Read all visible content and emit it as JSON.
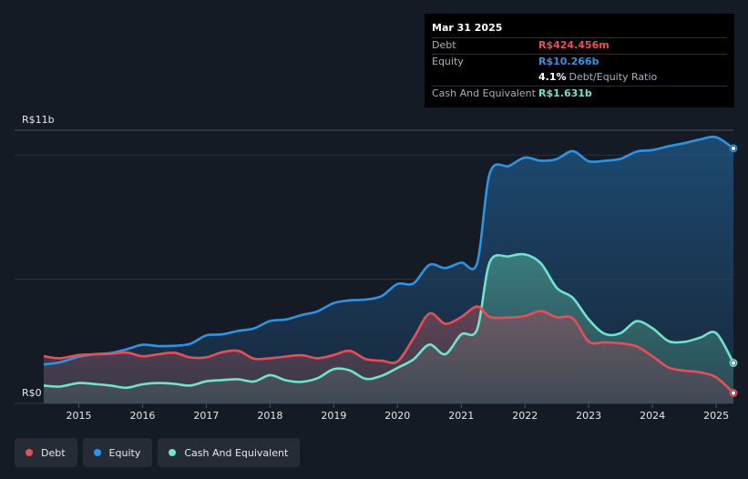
{
  "tooltip": {
    "date": "Mar 31 2025",
    "debt_label": "Debt",
    "debt_value": "R$424.456m",
    "equity_label": "Equity",
    "equity_value": "R$10.266b",
    "ratio_value": "4.1%",
    "ratio_label": "Debt/Equity Ratio",
    "cash_label": "Cash And Equivalent",
    "cash_value": "R$1.631b"
  },
  "legend": {
    "debt": "Debt",
    "equity": "Equity",
    "cash": "Cash And Equivalent"
  },
  "colors": {
    "debt": "#e64f58",
    "equity": "#2e93e5",
    "cash": "#6fe3cd",
    "background": "#151b24"
  },
  "chart_data": {
    "type": "area",
    "title": "",
    "xlabel": "",
    "ylabel": "",
    "unit": "R$ billions",
    "y_top_label": "R$11b",
    "y_bottom_label": "R$0",
    "ylim": [
      0,
      11
    ],
    "xlim": [
      2014.45,
      2025.27
    ],
    "x_ticks": [
      "2015",
      "2016",
      "2017",
      "2018",
      "2019",
      "2020",
      "2021",
      "2022",
      "2023",
      "2024",
      "2025"
    ],
    "series": [
      {
        "name": "Equity",
        "key": "equity",
        "points": [
          [
            2014.45,
            1.57
          ],
          [
            2014.7,
            1.65
          ],
          [
            2015.0,
            1.88
          ],
          [
            2015.25,
            1.98
          ],
          [
            2015.5,
            2.03
          ],
          [
            2015.75,
            2.18
          ],
          [
            2016.0,
            2.36
          ],
          [
            2016.25,
            2.31
          ],
          [
            2016.5,
            2.32
          ],
          [
            2016.75,
            2.4
          ],
          [
            2017.0,
            2.74
          ],
          [
            2017.25,
            2.78
          ],
          [
            2017.5,
            2.92
          ],
          [
            2017.75,
            3.02
          ],
          [
            2018.0,
            3.32
          ],
          [
            2018.25,
            3.38
          ],
          [
            2018.5,
            3.56
          ],
          [
            2018.75,
            3.71
          ],
          [
            2019.0,
            4.04
          ],
          [
            2019.25,
            4.15
          ],
          [
            2019.5,
            4.18
          ],
          [
            2019.75,
            4.32
          ],
          [
            2020.0,
            4.81
          ],
          [
            2020.25,
            4.83
          ],
          [
            2020.5,
            5.58
          ],
          [
            2020.75,
            5.45
          ],
          [
            2021.0,
            5.67
          ],
          [
            2021.25,
            5.65
          ],
          [
            2021.45,
            9.28
          ],
          [
            2021.75,
            9.56
          ],
          [
            2022.0,
            9.9
          ],
          [
            2022.25,
            9.77
          ],
          [
            2022.5,
            9.84
          ],
          [
            2022.75,
            10.16
          ],
          [
            2023.0,
            9.75
          ],
          [
            2023.25,
            9.77
          ],
          [
            2023.5,
            9.85
          ],
          [
            2023.75,
            10.14
          ],
          [
            2024.0,
            10.2
          ],
          [
            2024.25,
            10.35
          ],
          [
            2024.5,
            10.48
          ],
          [
            2024.75,
            10.63
          ],
          [
            2025.0,
            10.72
          ],
          [
            2025.27,
            10.27
          ]
        ]
      },
      {
        "name": "Cash And Equivalent",
        "key": "cash",
        "points": [
          [
            2014.45,
            0.72
          ],
          [
            2014.7,
            0.68
          ],
          [
            2015.0,
            0.82
          ],
          [
            2015.25,
            0.78
          ],
          [
            2015.5,
            0.72
          ],
          [
            2015.75,
            0.63
          ],
          [
            2016.0,
            0.77
          ],
          [
            2016.25,
            0.82
          ],
          [
            2016.5,
            0.79
          ],
          [
            2016.75,
            0.72
          ],
          [
            2017.0,
            0.89
          ],
          [
            2017.25,
            0.94
          ],
          [
            2017.5,
            0.97
          ],
          [
            2017.75,
            0.88
          ],
          [
            2018.0,
            1.14
          ],
          [
            2018.25,
            0.93
          ],
          [
            2018.5,
            0.87
          ],
          [
            2018.75,
            1.02
          ],
          [
            2019.0,
            1.38
          ],
          [
            2019.25,
            1.33
          ],
          [
            2019.5,
            0.99
          ],
          [
            2019.75,
            1.11
          ],
          [
            2020.0,
            1.43
          ],
          [
            2020.25,
            1.77
          ],
          [
            2020.5,
            2.37
          ],
          [
            2020.75,
            1.98
          ],
          [
            2021.0,
            2.78
          ],
          [
            2021.25,
            2.98
          ],
          [
            2021.45,
            5.7
          ],
          [
            2021.75,
            5.92
          ],
          [
            2022.0,
            6.0
          ],
          [
            2022.25,
            5.64
          ],
          [
            2022.5,
            4.65
          ],
          [
            2022.75,
            4.25
          ],
          [
            2023.0,
            3.38
          ],
          [
            2023.25,
            2.8
          ],
          [
            2023.5,
            2.83
          ],
          [
            2023.75,
            3.31
          ],
          [
            2024.0,
            3.03
          ],
          [
            2024.25,
            2.51
          ],
          [
            2024.5,
            2.48
          ],
          [
            2024.75,
            2.65
          ],
          [
            2025.0,
            2.83
          ],
          [
            2025.27,
            1.63
          ]
        ]
      },
      {
        "name": "Debt",
        "key": "debt",
        "points": [
          [
            2014.45,
            1.9
          ],
          [
            2014.7,
            1.82
          ],
          [
            2015.0,
            1.95
          ],
          [
            2015.25,
            1.98
          ],
          [
            2015.5,
            2.0
          ],
          [
            2015.75,
            2.05
          ],
          [
            2016.0,
            1.9
          ],
          [
            2016.25,
            1.98
          ],
          [
            2016.5,
            2.04
          ],
          [
            2016.75,
            1.85
          ],
          [
            2017.0,
            1.86
          ],
          [
            2017.25,
            2.06
          ],
          [
            2017.5,
            2.12
          ],
          [
            2017.75,
            1.8
          ],
          [
            2018.0,
            1.82
          ],
          [
            2018.25,
            1.89
          ],
          [
            2018.5,
            1.94
          ],
          [
            2018.75,
            1.82
          ],
          [
            2019.0,
            1.95
          ],
          [
            2019.25,
            2.12
          ],
          [
            2019.5,
            1.79
          ],
          [
            2019.75,
            1.72
          ],
          [
            2020.0,
            1.69
          ],
          [
            2020.25,
            2.62
          ],
          [
            2020.5,
            3.62
          ],
          [
            2020.75,
            3.21
          ],
          [
            2021.0,
            3.48
          ],
          [
            2021.25,
            3.9
          ],
          [
            2021.45,
            3.48
          ],
          [
            2021.75,
            3.46
          ],
          [
            2022.0,
            3.52
          ],
          [
            2022.25,
            3.72
          ],
          [
            2022.5,
            3.47
          ],
          [
            2022.75,
            3.43
          ],
          [
            2023.0,
            2.49
          ],
          [
            2023.25,
            2.46
          ],
          [
            2023.5,
            2.42
          ],
          [
            2023.75,
            2.3
          ],
          [
            2024.0,
            1.9
          ],
          [
            2024.25,
            1.45
          ],
          [
            2024.5,
            1.32
          ],
          [
            2024.75,
            1.25
          ],
          [
            2025.0,
            1.05
          ],
          [
            2025.27,
            0.42
          ]
        ]
      }
    ]
  }
}
